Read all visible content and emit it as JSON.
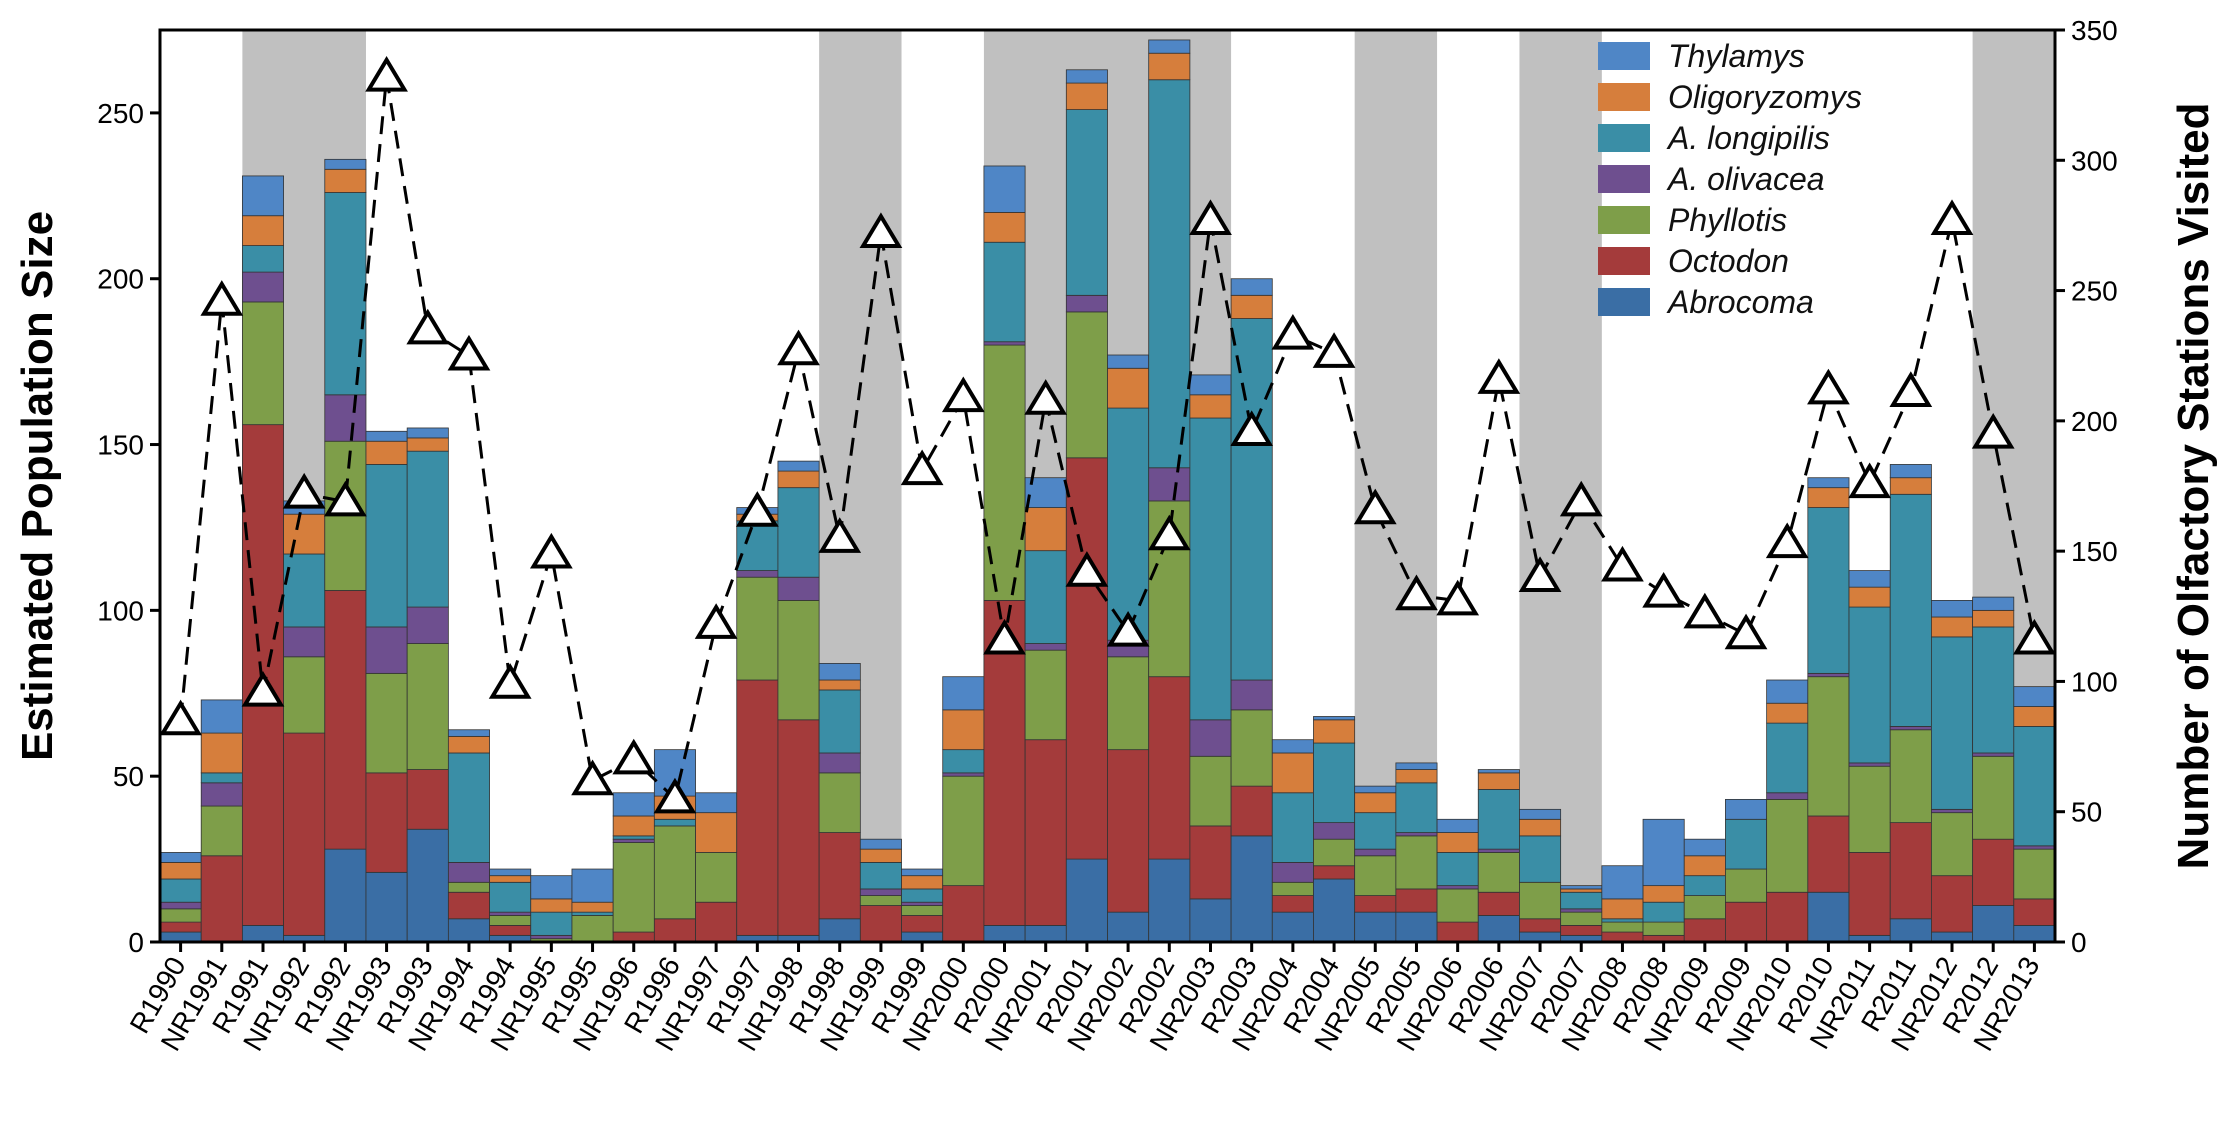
{
  "chart_data": {
    "type": "bar",
    "categories": [
      "R1990",
      "NR1991",
      "R1991",
      "NR1992",
      "R1992",
      "NR1993",
      "R1993",
      "NR1994",
      "R1994",
      "NR1995",
      "R1995",
      "NR1996",
      "R1996",
      "NR1997",
      "R1997",
      "NR1998",
      "R1998",
      "NR1999",
      "R1999",
      "NR2000",
      "R2000",
      "NR2001",
      "R2001",
      "NR2002",
      "R2002",
      "NR2003",
      "R2003",
      "NR2004",
      "R2004",
      "NR2005",
      "R2005",
      "NR2006",
      "R2006",
      "NR2007",
      "R2007",
      "NR2008",
      "R2008",
      "NR2009",
      "R2009",
      "NR2010",
      "R2010",
      "NR2011",
      "R2011",
      "NR2012",
      "R2012",
      "NR2013"
    ],
    "shaded_periods": [
      [
        2,
        4
      ],
      [
        16,
        17
      ],
      [
        20,
        25
      ],
      [
        29,
        30
      ],
      [
        33,
        34
      ],
      [
        44,
        45
      ]
    ],
    "series": [
      {
        "name": "Abrocoma",
        "color": "#3a6ea5",
        "values": [
          3,
          0,
          5,
          2,
          28,
          21,
          34,
          7,
          2,
          0,
          0,
          0,
          0,
          0,
          2,
          2,
          7,
          0,
          3,
          0,
          5,
          5,
          25,
          9,
          25,
          13,
          32,
          9,
          19,
          9,
          9,
          0,
          8,
          3,
          2,
          0,
          0,
          0,
          0,
          0,
          15,
          2,
          7,
          3,
          11,
          5
        ]
      },
      {
        "name": "Octodon",
        "color": "#a43b3b",
        "values": [
          3,
          26,
          151,
          61,
          78,
          30,
          18,
          8,
          3,
          0,
          0,
          3,
          7,
          12,
          77,
          65,
          26,
          11,
          5,
          17,
          98,
          56,
          121,
          49,
          55,
          22,
          15,
          5,
          4,
          5,
          7,
          6,
          7,
          4,
          3,
          3,
          2,
          7,
          12,
          15,
          23,
          25,
          29,
          17,
          20,
          8
        ]
      },
      {
        "name": "Phyllotis",
        "color": "#7e9e49",
        "values": [
          4,
          15,
          37,
          23,
          45,
          30,
          38,
          3,
          3,
          1,
          8,
          27,
          28,
          15,
          31,
          36,
          18,
          3,
          3,
          33,
          77,
          27,
          44,
          28,
          53,
          21,
          23,
          4,
          8,
          12,
          16,
          10,
          12,
          11,
          4,
          3,
          4,
          7,
          10,
          28,
          42,
          26,
          28,
          19,
          25,
          15
        ]
      },
      {
        "name": "A. olivacea",
        "color": "#6e4f8f",
        "values": [
          2,
          7,
          9,
          9,
          14,
          14,
          11,
          6,
          1,
          1,
          0,
          1,
          0,
          0,
          2,
          7,
          6,
          2,
          1,
          1,
          1,
          2,
          5,
          5,
          10,
          11,
          9,
          6,
          5,
          2,
          1,
          1,
          1,
          0,
          1,
          0,
          0,
          0,
          0,
          2,
          1,
          1,
          1,
          1,
          1,
          1
        ]
      },
      {
        "name": "A. longipilis",
        "color": "#3a8ea6",
        "values": [
          7,
          3,
          8,
          22,
          61,
          49,
          47,
          33,
          9,
          7,
          1,
          1,
          2,
          0,
          15,
          27,
          19,
          8,
          4,
          7,
          30,
          28,
          56,
          70,
          117,
          91,
          109,
          21,
          24,
          11,
          15,
          10,
          18,
          14,
          5,
          1,
          6,
          6,
          15,
          21,
          50,
          47,
          70,
          52,
          38,
          36
        ]
      },
      {
        "name": "Oligoryzomys",
        "color": "#d67e3c",
        "values": [
          5,
          12,
          9,
          12,
          7,
          7,
          4,
          5,
          2,
          4,
          3,
          6,
          7,
          12,
          2,
          5,
          3,
          4,
          4,
          12,
          9,
          13,
          8,
          12,
          8,
          7,
          7,
          12,
          7,
          6,
          4,
          6,
          5,
          5,
          1,
          6,
          5,
          6,
          0,
          6,
          6,
          6,
          5,
          6,
          5,
          6
        ]
      },
      {
        "name": "Thylamys",
        "color": "#4f86c6",
        "values": [
          3,
          10,
          12,
          4,
          3,
          3,
          3,
          2,
          2,
          7,
          10,
          7,
          14,
          6,
          2,
          3,
          5,
          3,
          2,
          10,
          14,
          9,
          4,
          4,
          4,
          6,
          5,
          4,
          1,
          2,
          2,
          4,
          1,
          3,
          1,
          10,
          20,
          5,
          6,
          7,
          3,
          5,
          4,
          5,
          4,
          6
        ]
      }
    ],
    "line": {
      "name": "Number of Olfactory Stations Visited",
      "axis": "right",
      "values": [
        85,
        246,
        96,
        172,
        169,
        332,
        235,
        225,
        99,
        149,
        62,
        70,
        55,
        122,
        165,
        227,
        155,
        272,
        181,
        209,
        116,
        208,
        142,
        119,
        156,
        277,
        196,
        233,
        226,
        166,
        133,
        131,
        216,
        140,
        169,
        144,
        134,
        126,
        118,
        153,
        212,
        176,
        211,
        277,
        195,
        116
      ]
    },
    "ylabel": "Estimated Population Size",
    "ylabel_right": "Number of Olfactory Stations Visited",
    "ylim": [
      0,
      275
    ],
    "ylim_right": [
      0,
      350
    ],
    "yticks": [
      0,
      50,
      100,
      150,
      200,
      250
    ],
    "yticks_right": [
      0,
      50,
      100,
      150,
      200,
      250,
      300,
      350
    ],
    "legend_position": "top-right"
  }
}
